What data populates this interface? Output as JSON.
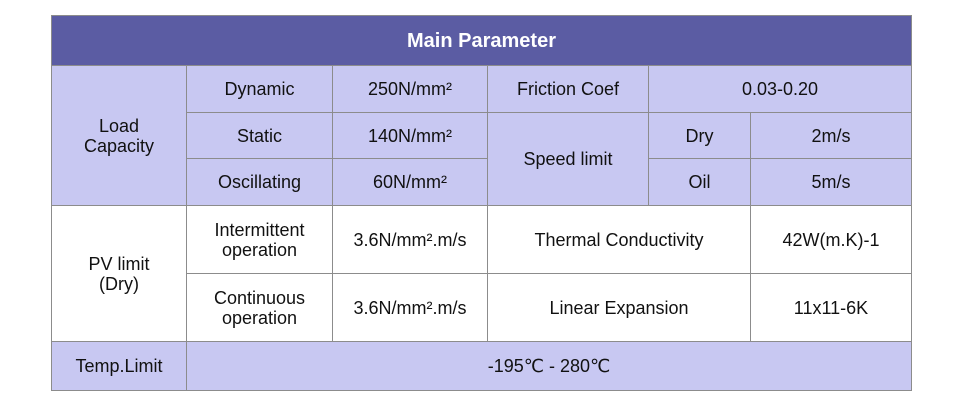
{
  "header": {
    "title": "Main Parameter"
  },
  "table": {
    "rows": [
      [
        "Load Capacity",
        "Dynamic",
        "250N/mm²",
        "Friction Coef",
        "0.03-0.20"
      ],
      [
        "Static",
        "140N/mm²",
        "Speed limit",
        "Dry",
        "2m/s"
      ],
      [
        "Oscillating",
        "60N/mm²",
        "Oil",
        "5m/s"
      ],
      [
        "PV limit (Dry)",
        "Intermittent operation",
        "3.6N/mm².m/s",
        "Thermal Conductivity",
        "42W(m.K)-1"
      ],
      [
        "Continuous operation",
        "3.6N/mm².m/s",
        "Linear Expansion",
        "11x11-6K"
      ],
      [
        "Temp.Limit",
        "-195℃ - 280℃"
      ]
    ]
  }
}
